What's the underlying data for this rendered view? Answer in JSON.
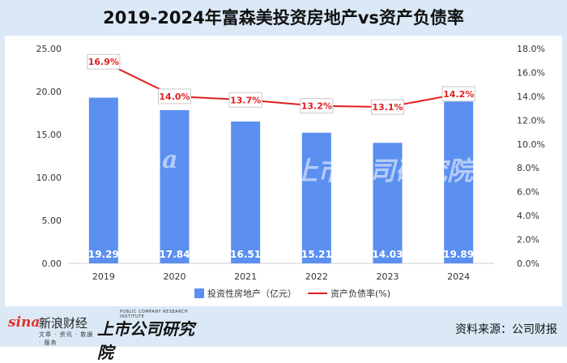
{
  "title": "2019-2024年富森美投资房地产vs资产负债率",
  "source": "资料来源：公司财报",
  "logos": {
    "sina_main": "sina",
    "sina_cn": "新浪财经",
    "sina_sub": "文章 · 资讯 · 数据 · 服务",
    "inst_en": "PUBLIC COMPANY RESEARCH INSTITUTE",
    "inst_cn": "上市公司研究院"
  },
  "colors": {
    "bar": "#5b8ff0",
    "line": "#e02020",
    "background": "#dbe9f7",
    "panel": "#ffffff"
  },
  "chart_data": {
    "type": "bar+line",
    "categories": [
      "2019",
      "2020",
      "2021",
      "2022",
      "2023",
      "2024"
    ],
    "series": [
      {
        "name": "投资性房地产（亿元）",
        "type": "bar",
        "axis": "left",
        "values": [
          19.29,
          17.84,
          16.51,
          15.21,
          14.03,
          19.89
        ]
      },
      {
        "name": "资产负债率(%)",
        "type": "line",
        "axis": "right",
        "values": [
          16.9,
          14.0,
          13.7,
          13.2,
          13.1,
          14.2
        ]
      }
    ],
    "bar_labels": [
      "19.29",
      "17.84",
      "16.51",
      "15.21",
      "14.03",
      "19.89"
    ],
    "line_labels": [
      "16.9%",
      "14.0%",
      "13.7%",
      "13.2%",
      "13.1%",
      "14.2%"
    ],
    "y_left": {
      "lim": [
        0,
        25
      ],
      "ticks": [
        "0.00",
        "5.00",
        "10.00",
        "15.00",
        "20.00",
        "25.00"
      ]
    },
    "y_right": {
      "lim": [
        0,
        18
      ],
      "ticks": [
        "0.0%",
        "2.0%",
        "4.0%",
        "6.0%",
        "8.0%",
        "10.0%",
        "12.0%",
        "14.0%",
        "16.0%",
        "18.0%"
      ]
    },
    "legend": "bottom",
    "grid": false
  }
}
